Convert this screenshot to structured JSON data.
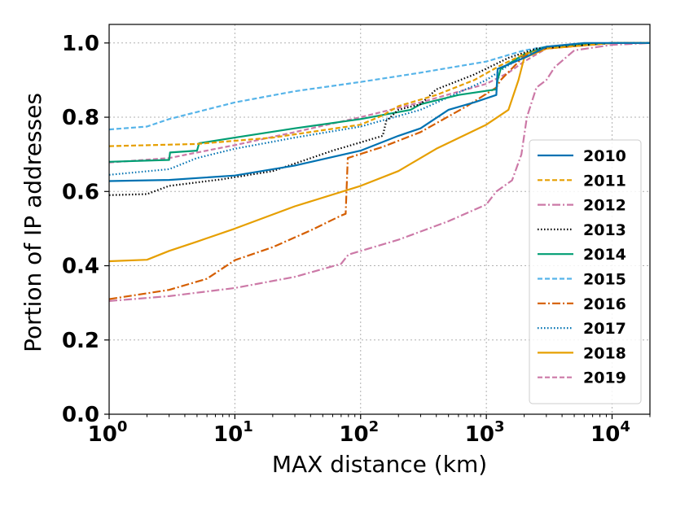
{
  "chart_data": {
    "type": "line",
    "title": "",
    "xlabel": "MAX distance (km)",
    "ylabel": "Portion of IP addresses",
    "xscale": "log",
    "xlim": [
      1,
      20000
    ],
    "ylim": [
      0,
      1.05
    ],
    "grid": true,
    "legend_position": "right",
    "x_ticks": [
      {
        "value": 1,
        "base": "10",
        "exp": "0"
      },
      {
        "value": 10,
        "base": "10",
        "exp": "1"
      },
      {
        "value": 100,
        "base": "10",
        "exp": "2"
      },
      {
        "value": 1000,
        "base": "10",
        "exp": "3"
      },
      {
        "value": 10000,
        "base": "10",
        "exp": "4"
      }
    ],
    "y_ticks": [
      {
        "value": 0.0,
        "label": "0.0"
      },
      {
        "value": 0.2,
        "label": "0.2"
      },
      {
        "value": 0.4,
        "label": "0.4"
      },
      {
        "value": 0.6,
        "label": "0.6"
      },
      {
        "value": 0.8,
        "label": "0.8"
      },
      {
        "value": 1.0,
        "label": "1.0"
      }
    ],
    "series": [
      {
        "name": "2010",
        "color": "#0072b2",
        "dash": "solid",
        "points": [
          [
            1,
            0.628
          ],
          [
            3,
            0.631
          ],
          [
            10,
            0.643
          ],
          [
            30,
            0.67
          ],
          [
            100,
            0.71
          ],
          [
            200,
            0.75
          ],
          [
            300,
            0.77
          ],
          [
            500,
            0.82
          ],
          [
            800,
            0.84
          ],
          [
            1200,
            0.86
          ],
          [
            1230,
            0.93
          ],
          [
            2000,
            0.96
          ],
          [
            3000,
            0.99
          ],
          [
            6000,
            1.0
          ],
          [
            20000,
            1.0
          ]
        ]
      },
      {
        "name": "2011",
        "color": "#e69f00",
        "dash": "6,3",
        "points": [
          [
            1,
            0.722
          ],
          [
            5,
            0.728
          ],
          [
            20,
            0.745
          ],
          [
            50,
            0.765
          ],
          [
            100,
            0.78
          ],
          [
            150,
            0.805
          ],
          [
            200,
            0.83
          ],
          [
            400,
            0.86
          ],
          [
            800,
            0.9
          ],
          [
            1300,
            0.94
          ],
          [
            2000,
            0.97
          ],
          [
            3000,
            0.985
          ],
          [
            10000,
            1.0
          ],
          [
            20000,
            1.0
          ]
        ]
      },
      {
        "name": "2012",
        "color": "#cc79a7",
        "dash": "10,3,2,3",
        "points": [
          [
            1,
            0.305
          ],
          [
            3,
            0.318
          ],
          [
            10,
            0.34
          ],
          [
            30,
            0.37
          ],
          [
            70,
            0.405
          ],
          [
            80,
            0.43
          ],
          [
            200,
            0.47
          ],
          [
            500,
            0.52
          ],
          [
            1000,
            0.565
          ],
          [
            1200,
            0.6
          ],
          [
            1600,
            0.63
          ],
          [
            1900,
            0.7
          ],
          [
            2100,
            0.8
          ],
          [
            2500,
            0.88
          ],
          [
            3000,
            0.9
          ],
          [
            3500,
            0.935
          ],
          [
            5000,
            0.98
          ],
          [
            10000,
            0.995
          ],
          [
            20000,
            1.0
          ]
        ]
      },
      {
        "name": "2013",
        "color": "#000000",
        "dash": "1.5,2.5",
        "points": [
          [
            1,
            0.59
          ],
          [
            2,
            0.593
          ],
          [
            3,
            0.615
          ],
          [
            8,
            0.633
          ],
          [
            20,
            0.655
          ],
          [
            60,
            0.71
          ],
          [
            150,
            0.75
          ],
          [
            160,
            0.79
          ],
          [
            200,
            0.82
          ],
          [
            300,
            0.835
          ],
          [
            400,
            0.875
          ],
          [
            800,
            0.915
          ],
          [
            1500,
            0.96
          ],
          [
            2500,
            0.985
          ],
          [
            10000,
            1.0
          ],
          [
            20000,
            1.0
          ]
        ]
      },
      {
        "name": "2014",
        "color": "#009e73",
        "dash": "solid",
        "points": [
          [
            1,
            0.68
          ],
          [
            3,
            0.685
          ],
          [
            3.05,
            0.705
          ],
          [
            5,
            0.71
          ],
          [
            5.2,
            0.73
          ],
          [
            10,
            0.745
          ],
          [
            30,
            0.77
          ],
          [
            100,
            0.795
          ],
          [
            250,
            0.82
          ],
          [
            300,
            0.835
          ],
          [
            600,
            0.86
          ],
          [
            1200,
            0.875
          ],
          [
            1230,
            0.9
          ],
          [
            1300,
            0.93
          ],
          [
            2000,
            0.97
          ],
          [
            3000,
            0.99
          ],
          [
            10000,
            1.0
          ],
          [
            20000,
            1.0
          ]
        ]
      },
      {
        "name": "2015",
        "color": "#56b4e9",
        "dash": "6,3",
        "points": [
          [
            1,
            0.767
          ],
          [
            2,
            0.775
          ],
          [
            3,
            0.795
          ],
          [
            10,
            0.84
          ],
          [
            30,
            0.87
          ],
          [
            100,
            0.895
          ],
          [
            300,
            0.92
          ],
          [
            1000,
            0.95
          ],
          [
            2000,
            0.98
          ],
          [
            3000,
            0.99
          ],
          [
            10000,
            1.0
          ],
          [
            20000,
            1.0
          ]
        ]
      },
      {
        "name": "2016",
        "color": "#d55e00",
        "dash": "10,3,2,3",
        "points": [
          [
            1,
            0.31
          ],
          [
            3,
            0.335
          ],
          [
            6,
            0.365
          ],
          [
            10,
            0.415
          ],
          [
            20,
            0.45
          ],
          [
            40,
            0.495
          ],
          [
            70,
            0.535
          ],
          [
            76,
            0.54
          ],
          [
            79,
            0.69
          ],
          [
            150,
            0.72
          ],
          [
            300,
            0.76
          ],
          [
            700,
            0.83
          ],
          [
            1200,
            0.88
          ],
          [
            1300,
            0.9
          ],
          [
            2000,
            0.965
          ],
          [
            3000,
            0.985
          ],
          [
            10000,
            1.0
          ],
          [
            20000,
            1.0
          ]
        ]
      },
      {
        "name": "2017",
        "color": "#0072b2",
        "dash": "1.5,2.5",
        "points": [
          [
            1,
            0.645
          ],
          [
            3,
            0.66
          ],
          [
            5,
            0.69
          ],
          [
            10,
            0.715
          ],
          [
            30,
            0.745
          ],
          [
            100,
            0.775
          ],
          [
            300,
            0.82
          ],
          [
            1000,
            0.9
          ],
          [
            1500,
            0.94
          ],
          [
            2500,
            0.985
          ],
          [
            10000,
            1.0
          ],
          [
            20000,
            1.0
          ]
        ]
      },
      {
        "name": "2018",
        "color": "#e69f00",
        "dash": "solid",
        "points": [
          [
            1,
            0.412
          ],
          [
            2,
            0.416
          ],
          [
            3,
            0.44
          ],
          [
            5,
            0.465
          ],
          [
            10,
            0.5
          ],
          [
            30,
            0.56
          ],
          [
            100,
            0.615
          ],
          [
            200,
            0.655
          ],
          [
            400,
            0.715
          ],
          [
            1000,
            0.78
          ],
          [
            1500,
            0.82
          ],
          [
            1800,
            0.9
          ],
          [
            2000,
            0.96
          ],
          [
            3000,
            0.985
          ],
          [
            10000,
            1.0
          ],
          [
            20000,
            1.0
          ]
        ]
      },
      {
        "name": "2019",
        "color": "#cc79a7",
        "dash": "6,3",
        "points": [
          [
            1,
            0.678
          ],
          [
            3,
            0.69
          ],
          [
            5,
            0.705
          ],
          [
            10,
            0.725
          ],
          [
            30,
            0.76
          ],
          [
            100,
            0.8
          ],
          [
            300,
            0.84
          ],
          [
            1000,
            0.89
          ],
          [
            1500,
            0.92
          ],
          [
            2000,
            0.95
          ],
          [
            3000,
            0.985
          ],
          [
            10000,
            1.0
          ],
          [
            20000,
            1.0
          ]
        ]
      }
    ]
  }
}
